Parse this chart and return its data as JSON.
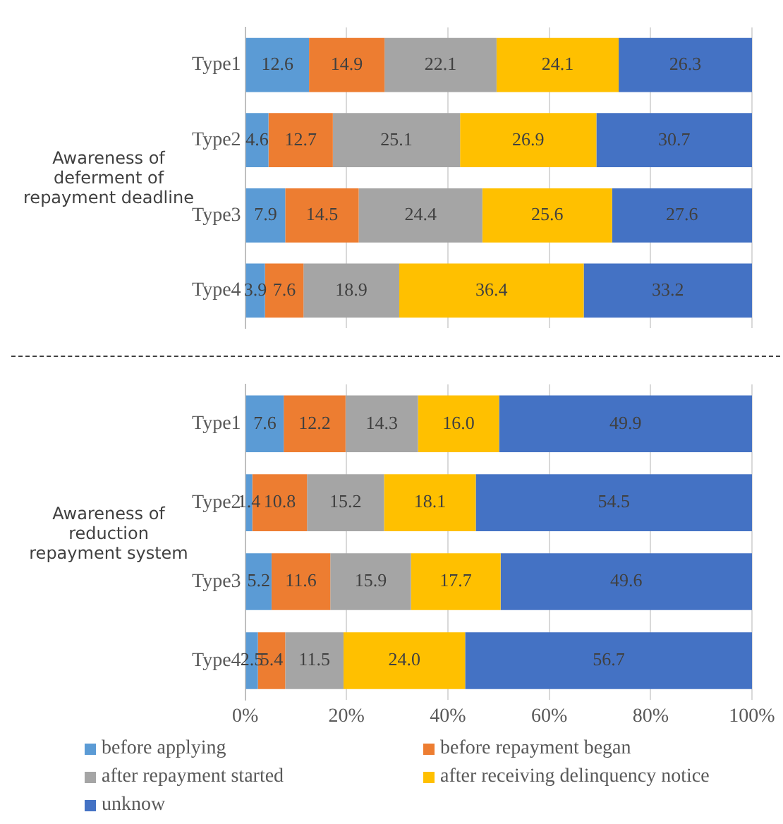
{
  "chart_data": [
    {
      "type": "bar",
      "orientation": "horizontal",
      "stacked": true,
      "ylabel": "Awareness of deferment of repayment deadline",
      "categories": [
        "Type1",
        "Type2",
        "Type3",
        "Type4"
      ],
      "series": [
        {
          "color": "#5b9bd5",
          "values": [
            12.6,
            4.6,
            7.9,
            3.9
          ]
        },
        {
          "color": "#ed7d31",
          "values": [
            14.9,
            12.7,
            14.5,
            7.6
          ]
        },
        {
          "color": "#a5a5a5",
          "values": [
            22.1,
            25.1,
            24.4,
            18.9
          ]
        },
        {
          "color": "#ffc000",
          "values": [
            24.1,
            26.9,
            25.6,
            36.4
          ]
        },
        {
          "color": "#4472c4",
          "values": [
            26.3,
            30.7,
            27.6,
            33.2
          ]
        }
      ],
      "xlim": [
        0,
        100
      ],
      "xticks": [
        {
          "value": 0,
          "label": null
        },
        {
          "value": 20,
          "label": null
        },
        {
          "value": 40,
          "label": null
        },
        {
          "value": 60,
          "label": null
        },
        {
          "value": 80,
          "label": null
        },
        {
          "value": 100,
          "label": null
        }
      ],
      "grid": "x",
      "data_labels": true,
      "tick_labels": "y",
      "legend": false
    },
    {
      "type": "bar",
      "orientation": "horizontal",
      "stacked": true,
      "ylabel": "Awareness of reduction repayment system",
      "categories": [
        "Type1",
        "Type2",
        "Type3",
        "Type4"
      ],
      "series": [
        {
          "name": "before applying",
          "color": "#5b9bd5",
          "values": [
            7.6,
            1.4,
            5.2,
            2.5
          ]
        },
        {
          "name": "before repayment began",
          "color": "#ed7d31",
          "values": [
            12.2,
            10.8,
            11.6,
            5.4
          ]
        },
        {
          "name": "after repayment started",
          "color": "#a5a5a5",
          "values": [
            14.3,
            15.2,
            15.9,
            11.5
          ]
        },
        {
          "name": "after receiving delinquency notice",
          "color": "#ffc000",
          "values": [
            16.0,
            18.1,
            17.7,
            24.0
          ],
          "value_labels": [
            "16.0",
            "18.1",
            "17.7",
            "24.0"
          ]
        },
        {
          "name": "unknow",
          "color": "#4472c4",
          "values": [
            49.9,
            54.5,
            49.6,
            56.7
          ]
        }
      ],
      "xlim": [
        0,
        100
      ],
      "xticks": [
        {
          "value": 0,
          "label": "0%"
        },
        {
          "value": 20,
          "label": "20%"
        },
        {
          "value": 40,
          "label": "40%"
        },
        {
          "value": 60,
          "label": "60%"
        },
        {
          "value": 80,
          "label": "80%"
        },
        {
          "value": 100,
          "label": "100%"
        }
      ],
      "grid": "x",
      "data_labels": true,
      "legend": "bottom"
    }
  ]
}
